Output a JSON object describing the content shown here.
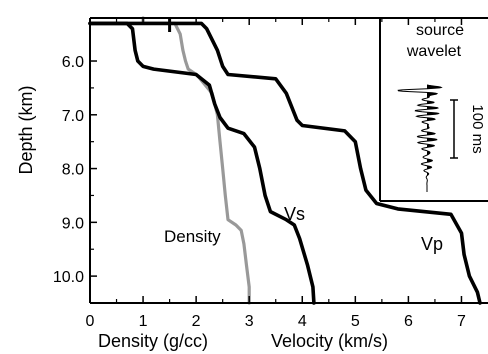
{
  "chart_data": {
    "type": "line",
    "xlim": [
      0,
      7.5
    ],
    "ylim": [
      5.2,
      10.5
    ],
    "y_reversed": true,
    "x_ticks": [
      "0",
      "1",
      "2",
      "3",
      "4",
      "5",
      "6",
      "7"
    ],
    "y_ticks": [
      "6.0",
      "7.0",
      "8.0",
      "9.0",
      "10.0"
    ],
    "ylabel": "Depth (km)",
    "xlabel_velocity": "Velocity (km/s)",
    "xlabel_density": "Density  (g/cc)",
    "series": [
      {
        "name": "Vp",
        "color": "#000000",
        "points": [
          [
            0,
            5.3
          ],
          [
            2.1,
            5.3
          ],
          [
            2.2,
            5.4
          ],
          [
            2.4,
            5.8
          ],
          [
            2.5,
            6.1
          ],
          [
            2.6,
            6.25
          ],
          [
            3.5,
            6.33
          ],
          [
            3.7,
            6.6
          ],
          [
            3.9,
            7.1
          ],
          [
            4.0,
            7.2
          ],
          [
            4.8,
            7.3
          ],
          [
            5.0,
            7.5
          ],
          [
            5.1,
            8.0
          ],
          [
            5.2,
            8.4
          ],
          [
            5.4,
            8.65
          ],
          [
            5.8,
            8.75
          ],
          [
            6.8,
            8.85
          ],
          [
            7.0,
            9.2
          ],
          [
            7.05,
            9.6
          ],
          [
            7.15,
            10.0
          ],
          [
            7.3,
            10.3
          ],
          [
            7.35,
            10.5
          ]
        ]
      },
      {
        "name": "Vs",
        "color": "#000000",
        "points": [
          [
            0,
            5.3
          ],
          [
            0.7,
            5.3
          ],
          [
            0.8,
            5.4
          ],
          [
            0.85,
            5.8
          ],
          [
            0.9,
            6.0
          ],
          [
            1.0,
            6.1
          ],
          [
            1.2,
            6.15
          ],
          [
            2.0,
            6.25
          ],
          [
            2.25,
            6.45
          ],
          [
            2.35,
            6.8
          ],
          [
            2.45,
            7.05
          ],
          [
            2.6,
            7.25
          ],
          [
            2.9,
            7.35
          ],
          [
            3.1,
            7.6
          ],
          [
            3.2,
            8.0
          ],
          [
            3.3,
            8.5
          ],
          [
            3.4,
            8.8
          ],
          [
            3.7,
            8.95
          ],
          [
            3.85,
            9.05
          ],
          [
            3.95,
            9.3
          ],
          [
            4.1,
            9.8
          ],
          [
            4.2,
            10.2
          ],
          [
            4.22,
            10.5
          ]
        ]
      },
      {
        "name": "Density",
        "color": "#999999",
        "points": [
          [
            1.0,
            5.0
          ],
          [
            1.0,
            5.3
          ],
          [
            1.6,
            5.3
          ],
          [
            1.7,
            5.5
          ],
          [
            1.75,
            5.8
          ],
          [
            1.8,
            6.0
          ],
          [
            1.85,
            6.15
          ],
          [
            2.0,
            6.25
          ],
          [
            2.05,
            6.3
          ],
          [
            2.3,
            6.6
          ],
          [
            2.4,
            7.0
          ],
          [
            2.45,
            7.5
          ],
          [
            2.5,
            8.0
          ],
          [
            2.55,
            8.5
          ],
          [
            2.6,
            8.95
          ],
          [
            2.75,
            9.05
          ],
          [
            2.85,
            9.15
          ],
          [
            2.9,
            9.4
          ],
          [
            2.95,
            9.8
          ],
          [
            3.0,
            10.2
          ],
          [
            3.0,
            10.5
          ]
        ]
      }
    ],
    "series_labels": {
      "vs": "Vs",
      "vp": "Vp",
      "density": "Density"
    },
    "inset": {
      "title_line1": "source",
      "title_line2": "wavelet",
      "scale_label": "100 ms"
    }
  }
}
